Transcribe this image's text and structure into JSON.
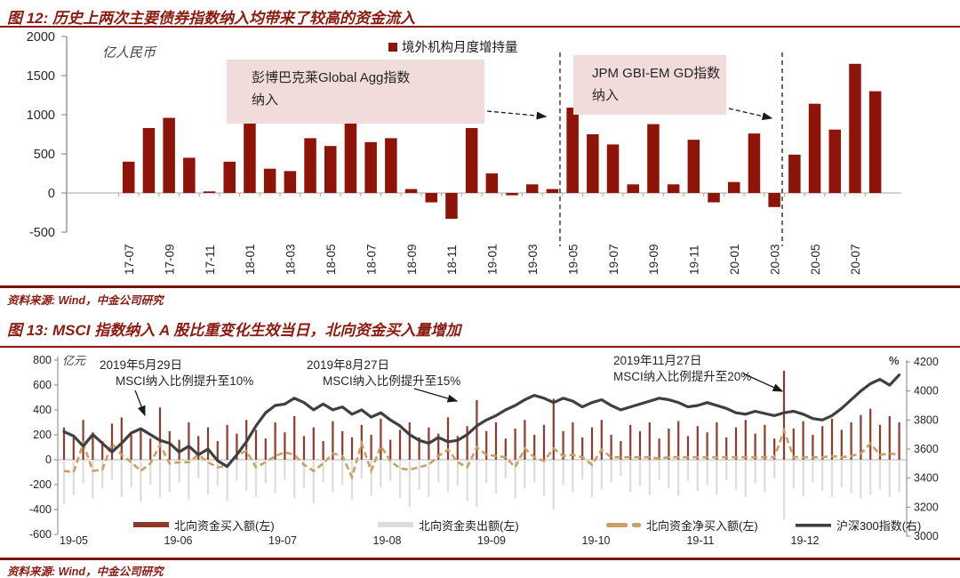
{
  "fig12": {
    "title": "图 12: 历史上两次主要债券指数纳入均带来了较高的资金流入",
    "source": "资料来源: Wind，中金公司研究",
    "unit_label": "亿人民币",
    "legend_label": "境外机构月度增持量",
    "colors": {
      "bar": "#8e1309",
      "annotation_bg": "#f2dcdb",
      "accent": "#8b1a10"
    },
    "annotations": [
      {
        "line1": "彭博巴克莱Global Agg指数",
        "line2": "纳入"
      },
      {
        "line1": "JPM GBI-EM GD指数",
        "line2": "纳入"
      }
    ],
    "chart_data": {
      "type": "bar",
      "title": "历史上两次主要债券指数纳入均带来了较高的资金流入",
      "ylabel": "亿人民币",
      "ylim": [
        -500,
        2000
      ],
      "y_ticks": [
        2000,
        1500,
        1000,
        500,
        0,
        -500
      ],
      "categories": [
        "17-07",
        "17-08",
        "17-09",
        "17-10",
        "17-11",
        "17-12",
        "18-01",
        "18-02",
        "18-03",
        "18-04",
        "18-05",
        "18-06",
        "18-07",
        "18-08",
        "18-09",
        "18-10",
        "18-11",
        "18-12",
        "19-01",
        "19-02",
        "19-03",
        "19-04",
        "19-05",
        "19-06",
        "19-07",
        "19-08",
        "19-09",
        "19-10",
        "19-11",
        "19-12",
        "20-01",
        "20-02",
        "20-03",
        "20-04",
        "20-05",
        "20-06",
        "20-07",
        "20-08"
      ],
      "values": [
        400,
        830,
        960,
        450,
        20,
        400,
        990,
        310,
        280,
        700,
        600,
        990,
        650,
        700,
        50,
        -120,
        -330,
        830,
        250,
        -30,
        110,
        50,
        1090,
        750,
        620,
        110,
        880,
        110,
        680,
        -120,
        140,
        760,
        -180,
        490,
        1140,
        810,
        1650,
        1300
      ],
      "event_lines": [
        {
          "label": "彭博巴克莱Global Agg指数纳入",
          "between": [
            "19-04",
            "19-05"
          ]
        },
        {
          "label": "JPM GBI-EM GD指数纳入",
          "between": [
            "20-03",
            "20-04"
          ]
        }
      ],
      "legend_position": "top-center",
      "grid": false
    }
  },
  "fig13": {
    "title": "图 13: MSCI 指数纳入 A 股比重变化生效当日，北向资金买入量增加",
    "source": "资料来源: Wind，中金公司研究",
    "unit_label_left": "亿元",
    "unit_label_right": "%",
    "colors": {
      "buy": "#8e3a2b",
      "sell": "#dcdcdc",
      "net": "#c9a063",
      "index": "#3f3f3f"
    },
    "annotations": [
      {
        "line1": "2019年5月29日",
        "line2": "MSCI纳入比例提升至10%"
      },
      {
        "line1": "2019年8月27日",
        "line2": "MSCI纳入比例提升至15%"
      },
      {
        "line1": "2019年11月27日",
        "line2": "MSCI纳入比例提升至20%"
      }
    ],
    "chart_data": {
      "type": "combo",
      "title": "MSCI 指数纳入 A 股比重变化生效当日，北向资金买入量增加",
      "x_tick_labels": [
        "19-05",
        "19-06",
        "19-07",
        "19-08",
        "19-09",
        "19-10",
        "19-11",
        "19-12"
      ],
      "x_span": "2019-05-01 to 2019-12-27, 88 sampled trading days",
      "ylim_left": [
        -600,
        800
      ],
      "y_ticks_left": [
        800,
        600,
        400,
        200,
        0,
        -200,
        -400,
        -600
      ],
      "ylim_right": [
        3000,
        4200
      ],
      "y_ticks_right": [
        4200,
        4000,
        3800,
        3600,
        3400,
        3200,
        3000
      ],
      "legend_position": "bottom-center",
      "series": [
        {
          "name": "北向资金买入额(左)",
          "type": "bar",
          "axis": "left",
          "values": [
            260,
            180,
            320,
            220,
            150,
            290,
            340,
            200,
            250,
            170,
            420,
            230,
            160,
            300,
            190,
            260,
            150,
            280,
            210,
            320,
            240,
            170,
            300,
            220,
            350,
            190,
            260,
            150,
            310,
            230,
            180,
            280,
            200,
            330,
            160,
            240,
            300,
            180,
            260,
            210,
            340,
            190,
            270,
            480,
            230,
            300,
            170,
            250,
            320,
            200,
            280,
            490,
            230,
            300,
            180,
            260,
            320,
            200,
            150,
            280,
            230,
            300,
            170,
            250,
            310,
            190,
            270,
            220,
            300,
            180,
            260,
            320,
            210,
            280,
            170,
            715,
            250,
            310,
            200,
            270,
            330,
            240,
            300,
            360,
            410,
            280,
            350,
            300
          ]
        },
        {
          "name": "北向资金卖出额(左)",
          "type": "bar",
          "axis": "left",
          "values": [
            -350,
            -280,
            -190,
            -310,
            -230,
            -160,
            -300,
            -220,
            -340,
            -200,
            -300,
            -260,
            -180,
            -320,
            -150,
            -280,
            -210,
            -330,
            -170,
            -250,
            -300,
            -190,
            -270,
            -160,
            -310,
            -230,
            -350,
            -180,
            -260,
            -200,
            -320,
            -150,
            -290,
            -220,
            -170,
            -310,
            -380,
            -240,
            -300,
            -180,
            -260,
            -210,
            -330,
            -380,
            -190,
            -270,
            -150,
            -310,
            -230,
            -180,
            -290,
            -400,
            -200,
            -260,
            -160,
            -300,
            -240,
            -180,
            -130,
            -260,
            -210,
            -280,
            -160,
            -230,
            -290,
            -170,
            -250,
            -200,
            -280,
            -160,
            -240,
            -300,
            -190,
            -260,
            -150,
            -480,
            -230,
            -290,
            -180,
            -250,
            -300,
            -220,
            -270,
            -310,
            -280,
            -240,
            -300,
            -260
          ]
        },
        {
          "name": "北向资金净买入额(左)",
          "type": "dashed-line",
          "axis": "left",
          "values": [
            -90,
            -100,
            130,
            -90,
            -80,
            130,
            40,
            -20,
            -90,
            -30,
            120,
            -30,
            -20,
            -20,
            40,
            -20,
            -60,
            -50,
            40,
            70,
            -60,
            -20,
            30,
            60,
            40,
            -40,
            -90,
            -30,
            50,
            30,
            -140,
            130,
            -90,
            110,
            -10,
            -70,
            -80,
            -60,
            -40,
            30,
            80,
            -20,
            -60,
            100,
            40,
            30,
            20,
            -60,
            90,
            20,
            -10,
            90,
            30,
            40,
            20,
            -40,
            80,
            20,
            20,
            20,
            20,
            20,
            10,
            20,
            20,
            20,
            20,
            20,
            20,
            20,
            20,
            20,
            20,
            20,
            20,
            235,
            20,
            20,
            20,
            20,
            30,
            20,
            30,
            50,
            130,
            40,
            50,
            40
          ]
        },
        {
          "name": "沪深300指数(右)",
          "type": "line",
          "axis": "right",
          "values": [
            3720,
            3690,
            3620,
            3700,
            3640,
            3580,
            3640,
            3710,
            3740,
            3700,
            3660,
            3640,
            3580,
            3620,
            3560,
            3600,
            3520,
            3480,
            3560,
            3650,
            3760,
            3850,
            3900,
            3910,
            3950,
            3920,
            3870,
            3910,
            3870,
            3890,
            3840,
            3870,
            3820,
            3850,
            3800,
            3760,
            3700,
            3660,
            3640,
            3680,
            3650,
            3660,
            3700,
            3760,
            3800,
            3830,
            3870,
            3900,
            3940,
            3970,
            3950,
            3920,
            3950,
            3930,
            3890,
            3920,
            3940,
            3900,
            3870,
            3890,
            3910,
            3930,
            3950,
            3940,
            3920,
            3890,
            3900,
            3920,
            3900,
            3880,
            3850,
            3840,
            3860,
            3845,
            3830,
            3850,
            3860,
            3840,
            3810,
            3800,
            3830,
            3880,
            3940,
            4000,
            4050,
            4080,
            4040,
            4110
          ]
        }
      ],
      "grid": false
    }
  }
}
